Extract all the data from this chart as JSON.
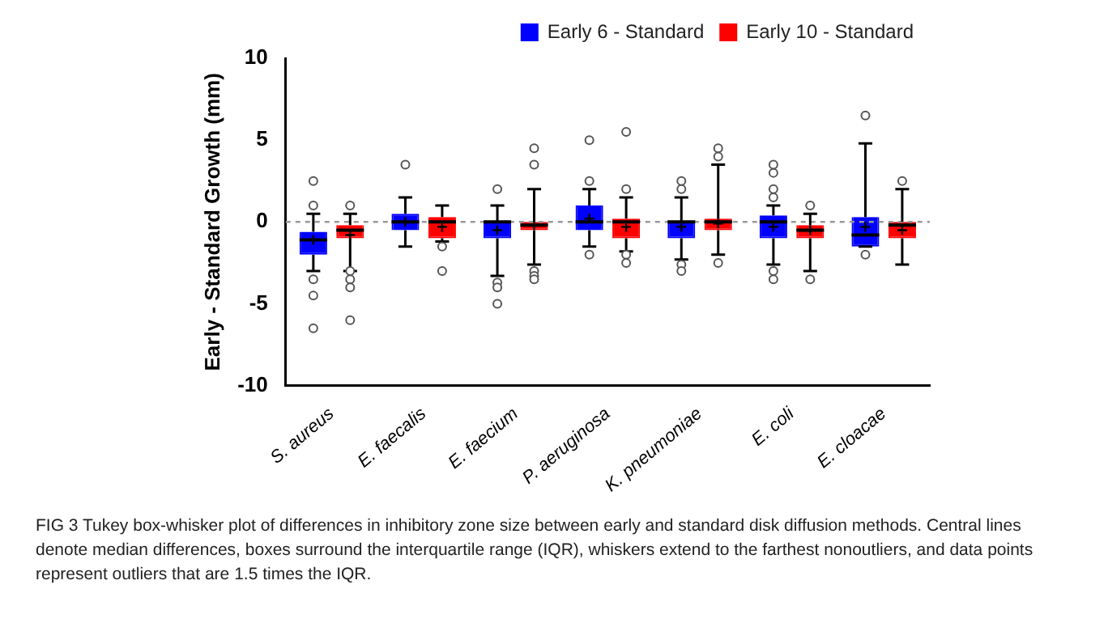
{
  "chart_data": {
    "type": "box",
    "ylabel": "Early - Standard Growth (mm)",
    "categories": [
      "S. aureus",
      "E. faecalis",
      "E. faecium",
      "P. aeruginosa",
      "K. pneumoniae",
      "E. coli",
      "E. cloacae"
    ],
    "ylim": [
      -10,
      10
    ],
    "yticks": [
      -10,
      -5,
      0,
      5,
      10
    ],
    "grid": false,
    "legend": "top right",
    "ref_lines": [
      {
        "axis": "y",
        "value": 0,
        "line_style": "dashed",
        "color": "#999999"
      }
    ],
    "annotations": [
      "FIG 3 Tukey box-whisker plot of differences in inhibitory zone size between early and standard disk diffusion methods. Central lines denote median differences, boxes surround the interquartile range (IQR), whiskers extend to the farthest nonoutliers, and data points represent outliers that are 1.5 times the IQR."
    ],
    "series": [
      {
        "name": "Early 6 - Standard",
        "color": "#0000ff",
        "boxes": [
          {
            "low": -3,
            "q1": -2,
            "median": -1.1,
            "q3": -0.6,
            "high": 0.5,
            "mean": -1.1,
            "outliers": [
              2.5,
              1,
              -3.5,
              -4.5,
              -6.5
            ]
          },
          {
            "low": -1.5,
            "q1": -0.5,
            "median": 0,
            "q3": 0.5,
            "high": 1.5,
            "mean": 0,
            "outliers": [
              3.5
            ]
          },
          {
            "low": -3.3,
            "q1": -1,
            "median": 0,
            "q3": 0,
            "high": 1,
            "mean": -0.5,
            "outliers": [
              2,
              -3.7,
              -4,
              -5
            ]
          },
          {
            "low": -1.5,
            "q1": -0.5,
            "median": 0,
            "q3": 1,
            "high": 2,
            "mean": 0.2,
            "outliers": [
              5,
              2.5,
              -2
            ]
          },
          {
            "low": -2.3,
            "q1": -1,
            "median": 0,
            "q3": 0,
            "high": 1.5,
            "mean": -0.3,
            "outliers": [
              2.5,
              2,
              -2.6,
              -3
            ]
          },
          {
            "low": -2.6,
            "q1": -1,
            "median": 0,
            "q3": 0.4,
            "high": 1,
            "mean": -0.3,
            "outliers": [
              1.5,
              2,
              3,
              3.5,
              -3,
              -3.5
            ]
          },
          {
            "low": -1.5,
            "q1": -1.5,
            "median": -0.8,
            "q3": 0.3,
            "high": 4.8,
            "mean": -0.3,
            "outliers": [
              6.5,
              -2
            ]
          }
        ]
      },
      {
        "name": "Early 10 - Standard",
        "color": "#ff0000",
        "boxes": [
          {
            "low": -3,
            "q1": -1,
            "median": -0.5,
            "q3": -0.2,
            "high": 0.5,
            "mean": -0.8,
            "outliers": [
              1,
              -3,
              -3.5,
              -4,
              -6
            ]
          },
          {
            "low": -1.2,
            "q1": -1,
            "median": 0,
            "q3": 0.3,
            "high": 1,
            "mean": -0.3,
            "outliers": [
              -1.5,
              -3
            ]
          },
          {
            "low": -2.6,
            "q1": -0.5,
            "median": -0.2,
            "q3": 0,
            "high": 2,
            "mean": -0.2,
            "outliers": [
              4.5,
              3.5,
              -3,
              -3.3,
              -3.5
            ]
          },
          {
            "low": -1.8,
            "q1": -1,
            "median": 0,
            "q3": 0.2,
            "high": 1.5,
            "mean": -0.3,
            "outliers": [
              5.5,
              2,
              -2,
              -2.5
            ]
          },
          {
            "low": -2,
            "q1": -0.5,
            "median": 0,
            "q3": 0.2,
            "high": 3.5,
            "mean": -0.1,
            "outliers": [
              4.5,
              4,
              -2.5
            ]
          },
          {
            "low": -3,
            "q1": -1,
            "median": -0.5,
            "q3": -0.2,
            "high": 0.5,
            "mean": -0.5,
            "outliers": [
              1,
              -3.5
            ]
          },
          {
            "low": -2.6,
            "q1": -1,
            "median": -0.2,
            "q3": 0,
            "high": 2,
            "mean": -0.5,
            "outliers": [
              2.5
            ]
          }
        ]
      }
    ]
  }
}
